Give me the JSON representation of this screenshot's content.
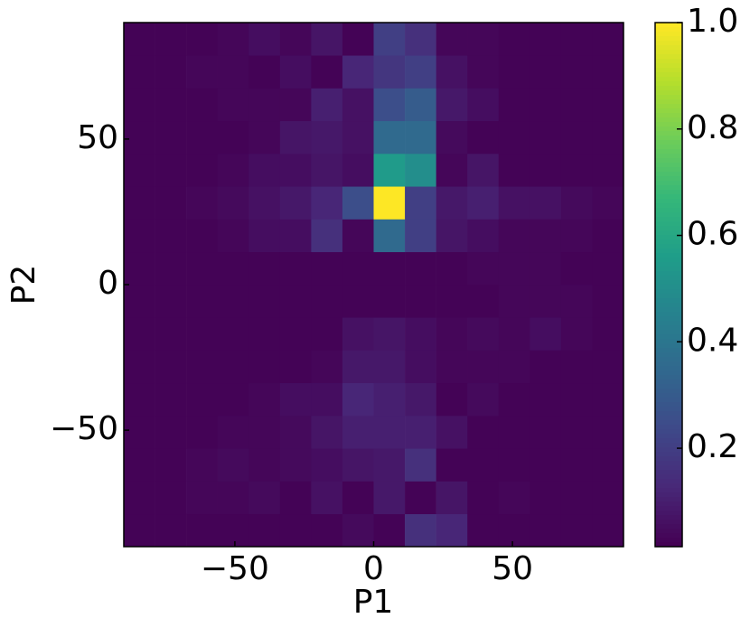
{
  "chart_data": {
    "type": "heatmap",
    "xlabel": "P1",
    "ylabel": "P2",
    "xbins": [
      -90,
      -78.75,
      -67.5,
      -56.25,
      -45,
      -33.75,
      -22.5,
      -11.25,
      0,
      11.25,
      22.5,
      33.75,
      45,
      56.25,
      67.5,
      78.75,
      90
    ],
    "ybins": [
      -90,
      -78.75,
      -67.5,
      -56.25,
      -45,
      -33.75,
      -22.5,
      -11.25,
      0,
      11.25,
      22.5,
      33.75,
      45,
      56.25,
      67.5,
      78.75,
      90
    ],
    "z": [
      [
        0.02,
        0.02,
        0.02,
        0.02,
        0.02,
        0.02,
        0.02,
        0.04,
        0.02,
        0.15,
        0.12,
        0.02,
        0.02,
        0.02,
        0.02,
        0.02
      ],
      [
        0.02,
        0.02,
        0.03,
        0.03,
        0.04,
        0.02,
        0.06,
        0.02,
        0.08,
        0.02,
        0.07,
        0.02,
        0.03,
        0.02,
        0.02,
        0.02
      ],
      [
        0.02,
        0.02,
        0.03,
        0.04,
        0.03,
        0.04,
        0.05,
        0.07,
        0.08,
        0.15,
        0.02,
        0.02,
        0.02,
        0.02,
        0.02,
        0.02
      ],
      [
        0.02,
        0.02,
        0.02,
        0.03,
        0.03,
        0.04,
        0.07,
        0.1,
        0.1,
        0.1,
        0.06,
        0.02,
        0.02,
        0.02,
        0.02,
        0.02
      ],
      [
        0.02,
        0.02,
        0.02,
        0.02,
        0.03,
        0.05,
        0.05,
        0.12,
        0.1,
        0.08,
        0.02,
        0.04,
        0.02,
        0.02,
        0.02,
        0.02
      ],
      [
        0.02,
        0.02,
        0.02,
        0.02,
        0.02,
        0.02,
        0.03,
        0.08,
        0.08,
        0.05,
        0.03,
        0.03,
        0.03,
        0.02,
        0.02,
        0.02
      ],
      [
        0.02,
        0.02,
        0.02,
        0.02,
        0.02,
        0.02,
        0.02,
        0.06,
        0.07,
        0.05,
        0.03,
        0.04,
        0.03,
        0.05,
        0.03,
        0.02
      ],
      [
        0.02,
        0.02,
        0.02,
        0.02,
        0.02,
        0.02,
        0.02,
        0.02,
        0.02,
        0.02,
        0.02,
        0.02,
        0.03,
        0.03,
        0.03,
        0.02
      ],
      [
        0.02,
        0.02,
        0.02,
        0.02,
        0.02,
        0.02,
        0.02,
        0.02,
        0.02,
        0.02,
        0.02,
        0.03,
        0.03,
        0.03,
        0.02,
        0.02
      ],
      [
        0.02,
        0.02,
        0.02,
        0.03,
        0.05,
        0.05,
        0.15,
        0.03,
        0.35,
        0.2,
        0.07,
        0.05,
        0.03,
        0.03,
        0.03,
        0.02
      ],
      [
        0.02,
        0.02,
        0.03,
        0.04,
        0.06,
        0.08,
        0.12,
        0.25,
        1.0,
        0.2,
        0.08,
        0.1,
        0.06,
        0.06,
        0.04,
        0.03
      ],
      [
        0.02,
        0.02,
        0.02,
        0.03,
        0.05,
        0.05,
        0.07,
        0.05,
        0.55,
        0.5,
        0.03,
        0.07,
        0.02,
        0.02,
        0.02,
        0.02
      ],
      [
        0.02,
        0.02,
        0.02,
        0.02,
        0.03,
        0.07,
        0.08,
        0.06,
        0.35,
        0.35,
        0.04,
        0.02,
        0.02,
        0.02,
        0.02,
        0.02
      ],
      [
        0.02,
        0.02,
        0.02,
        0.03,
        0.03,
        0.03,
        0.1,
        0.06,
        0.25,
        0.3,
        0.08,
        0.05,
        0.02,
        0.02,
        0.02,
        0.02
      ],
      [
        0.02,
        0.02,
        0.03,
        0.03,
        0.02,
        0.05,
        0.02,
        0.12,
        0.17,
        0.2,
        0.06,
        0.03,
        0.02,
        0.02,
        0.02,
        0.02
      ],
      [
        0.02,
        0.02,
        0.02,
        0.03,
        0.05,
        0.03,
        0.07,
        0.02,
        0.2,
        0.15,
        0.03,
        0.03,
        0.02,
        0.02,
        0.02,
        0.02
      ]
    ],
    "xlim": [
      -90,
      90
    ],
    "ylim": [
      -90,
      90
    ],
    "xticks": [
      {
        "value": -50,
        "label": "−50"
      },
      0,
      50
    ],
    "yticks": [
      {
        "value": -50,
        "label": "−50"
      },
      0,
      50
    ],
    "colormap": "viridis",
    "clim": [
      0.015,
      1
    ],
    "colorbar_ticks": [
      0.2,
      0.4,
      0.6,
      0.8,
      {
        "value": 1,
        "label": "1.0"
      }
    ]
  }
}
